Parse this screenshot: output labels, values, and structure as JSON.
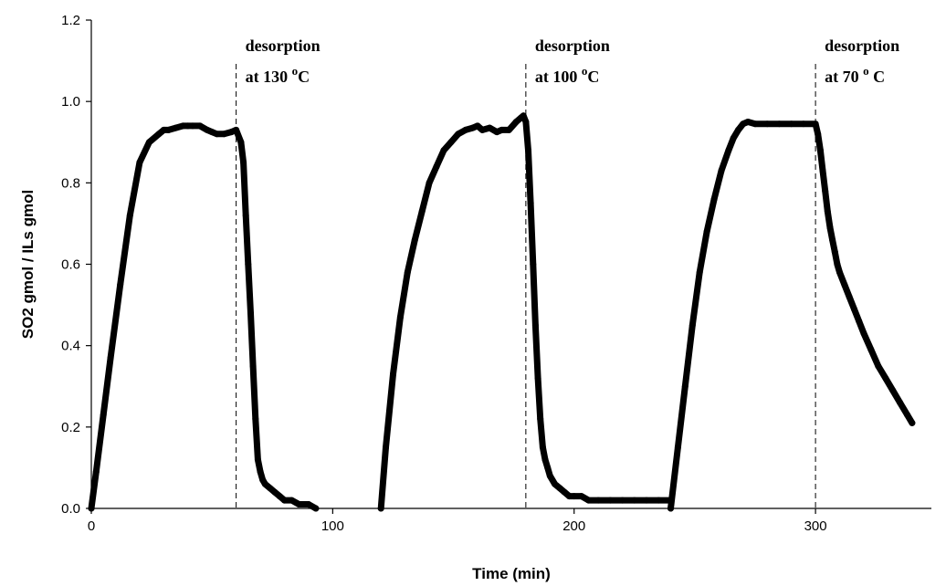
{
  "chart_data": {
    "type": "line",
    "title": "",
    "xlabel": "Time (min)",
    "ylabel": "SO2 gmol / ILs gmol",
    "xlim": [
      0,
      348
    ],
    "ylim": [
      0,
      1.2
    ],
    "x_ticks": [
      0,
      100,
      200,
      300
    ],
    "x_tick_labels": [
      "0",
      "100",
      "200",
      "300"
    ],
    "y_ticks": [
      0,
      0.2,
      0.4,
      0.6,
      0.8,
      1.0,
      1.2
    ],
    "y_tick_labels": [
      "0.0",
      "0.2",
      "0.4",
      "0.6",
      "0.8",
      "1.0",
      "1.2"
    ],
    "grid": false,
    "legend": "none",
    "line_color": "#000000",
    "vlines": [
      60,
      180,
      300
    ],
    "annotations": [
      {
        "x": 60,
        "line1": "desorption",
        "line2_prefix": "at 130 ",
        "sup": "o",
        "line2_suffix": "C"
      },
      {
        "x": 180,
        "line1": "desorption",
        "line2_prefix": "at 100 ",
        "sup": "o",
        "line2_suffix": "C"
      },
      {
        "x": 300,
        "line1": "desorption",
        "line2_prefix": "at 70 ",
        "sup": "o",
        "line2_suffix": " C"
      }
    ],
    "series": [
      {
        "x": [
          0,
          2,
          5,
          8,
          12,
          16,
          20,
          24,
          28,
          30,
          32,
          35,
          38,
          40,
          42,
          45,
          48,
          50,
          52,
          55,
          58,
          60,
          62,
          63,
          64,
          65,
          66,
          67,
          68,
          69,
          70,
          71,
          72,
          74,
          76,
          78,
          80,
          83,
          86,
          90,
          93
        ],
        "y": [
          0.0,
          0.09,
          0.23,
          0.37,
          0.55,
          0.72,
          0.85,
          0.9,
          0.92,
          0.93,
          0.93,
          0.935,
          0.94,
          0.94,
          0.94,
          0.94,
          0.93,
          0.925,
          0.92,
          0.92,
          0.925,
          0.93,
          0.9,
          0.85,
          0.72,
          0.6,
          0.48,
          0.35,
          0.22,
          0.12,
          0.09,
          0.07,
          0.06,
          0.05,
          0.04,
          0.03,
          0.02,
          0.02,
          0.01,
          0.01,
          0.0
        ]
      },
      {
        "x": [
          120,
          122,
          125,
          128,
          131,
          134,
          137,
          140,
          143,
          146,
          149,
          152,
          155,
          158,
          160,
          162,
          165,
          168,
          170,
          173,
          176,
          178,
          179,
          180,
          181,
          182,
          183,
          184,
          185,
          186,
          187,
          188,
          189,
          190,
          192,
          194,
          196,
          198,
          200,
          203,
          206,
          210,
          215,
          220,
          225,
          230,
          235,
          240
        ],
        "y": [
          0.0,
          0.15,
          0.33,
          0.47,
          0.58,
          0.66,
          0.73,
          0.8,
          0.84,
          0.88,
          0.9,
          0.92,
          0.93,
          0.935,
          0.94,
          0.93,
          0.935,
          0.925,
          0.93,
          0.93,
          0.95,
          0.96,
          0.965,
          0.95,
          0.88,
          0.75,
          0.6,
          0.45,
          0.32,
          0.22,
          0.15,
          0.12,
          0.1,
          0.08,
          0.06,
          0.05,
          0.04,
          0.03,
          0.03,
          0.03,
          0.02,
          0.02,
          0.02,
          0.02,
          0.02,
          0.02,
          0.02,
          0.02
        ]
      },
      {
        "x": [
          240,
          243,
          246,
          249,
          252,
          255,
          258,
          261,
          264,
          266,
          268,
          270,
          272,
          275,
          280,
          285,
          290,
          295,
          300,
          301,
          302,
          303,
          304,
          305,
          306,
          307,
          308,
          309,
          310,
          312,
          314,
          316,
          318,
          320,
          323,
          326,
          329,
          332,
          335,
          338,
          340
        ],
        "y": [
          0.0,
          0.15,
          0.3,
          0.45,
          0.58,
          0.68,
          0.76,
          0.83,
          0.88,
          0.91,
          0.93,
          0.945,
          0.95,
          0.945,
          0.945,
          0.945,
          0.945,
          0.945,
          0.945,
          0.92,
          0.88,
          0.83,
          0.78,
          0.73,
          0.69,
          0.66,
          0.63,
          0.6,
          0.58,
          0.55,
          0.52,
          0.49,
          0.46,
          0.43,
          0.39,
          0.35,
          0.32,
          0.29,
          0.26,
          0.23,
          0.21
        ]
      }
    ]
  }
}
